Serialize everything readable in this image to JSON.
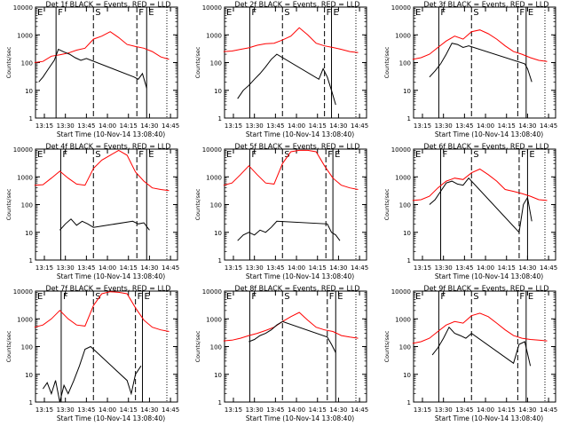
{
  "figure": {
    "x_tick_labels": [
      "13:15",
      "13:30",
      "13:45",
      "14:00",
      "14:15",
      "14:30",
      "14:45"
    ],
    "y_tick_labels": [
      "1",
      "10",
      "100",
      "1000",
      "10000"
    ],
    "ylabel": "Counts/sec",
    "xlabel": "Start Time (10-Nov-14 13:08:40)"
  },
  "chart_data": [
    {
      "type": "line",
      "title": "Det 1f BLACK = Events, RED = LLD",
      "y_scale": "log",
      "ylim": [
        1,
        10000
      ],
      "xlabel": "Start Time (10-Nov-14 13:08:40)",
      "ylabel": "Counts/sec",
      "markers": [
        {
          "label": "E",
          "x": "13:08:40"
        },
        {
          "label": "F",
          "x": "13:23:20"
        },
        {
          "label": "S",
          "x": "13:50:00"
        },
        {
          "label": "F",
          "x": "14:21:00"
        },
        {
          "label": "E",
          "x": "14:28:00"
        }
      ],
      "series": [
        {
          "color": "#ff0000",
          "x": [
            "13:08",
            "13:14",
            "13:20",
            "13:26",
            "13:32",
            "13:38",
            "13:44",
            "13:50",
            "13:56",
            "14:02",
            "14:08",
            "14:14",
            "14:20",
            "14:26",
            "14:32",
            "14:38",
            "14:44"
          ],
          "y": [
            100,
            110,
            170,
            190,
            220,
            280,
            330,
            700,
            900,
            1300,
            800,
            450,
            380,
            330,
            250,
            160,
            130
          ]
        },
        {
          "color": "#000000",
          "x": [
            "13:11",
            "13:14",
            "13:18",
            "13:22",
            "13:25",
            "13:29",
            "13:33",
            "13:37",
            "13:41",
            "13:45",
            "14:19",
            "14:22",
            "14:25",
            "14:28"
          ],
          "y": [
            20,
            30,
            60,
            120,
            300,
            240,
            200,
            150,
            120,
            140,
            30,
            25,
            40,
            12
          ]
        }
      ]
    },
    {
      "type": "line",
      "title": "Det 2f BLACK = Events, RED = LLD",
      "y_scale": "log",
      "ylim": [
        1,
        10000
      ],
      "xlabel": "Start Time (10-Nov-14 13:08:40)",
      "ylabel": "Counts/sec",
      "markers": [
        {
          "label": "E",
          "x": "13:08:40"
        },
        {
          "label": "F",
          "x": "13:26:40"
        },
        {
          "label": "S",
          "x": "13:50:00"
        },
        {
          "label": "F",
          "x": "14:20:00"
        },
        {
          "label": "E",
          "x": "14:25:00"
        }
      ],
      "series": [
        {
          "color": "#ff0000",
          "x": [
            "13:08",
            "13:14",
            "13:20",
            "13:26",
            "13:32",
            "13:38",
            "13:44",
            "13:50",
            "13:56",
            "14:02",
            "14:08",
            "14:14",
            "14:20",
            "14:26",
            "14:32",
            "14:38",
            "14:44"
          ],
          "y": [
            250,
            260,
            300,
            340,
            420,
            480,
            500,
            650,
            900,
            1800,
            1000,
            500,
            400,
            350,
            300,
            250,
            230
          ]
        },
        {
          "color": "#000000",
          "x": [
            "13:18",
            "13:22",
            "13:26",
            "13:30",
            "13:34",
            "13:38",
            "13:42",
            "13:46",
            "14:16",
            "14:19",
            "14:22",
            "14:25",
            "14:28"
          ],
          "y": [
            5,
            10,
            15,
            25,
            40,
            70,
            130,
            200,
            25,
            60,
            30,
            10,
            3
          ]
        }
      ]
    },
    {
      "type": "line",
      "title": "Det 3f BLACK = Events, RED = LLD",
      "y_scale": "log",
      "ylim": [
        1,
        10000
      ],
      "xlabel": "Start Time (10-Nov-14 13:08:40)",
      "ylabel": "Counts/sec",
      "markers": [
        {
          "label": "E",
          "x": "13:08:40"
        },
        {
          "label": "F",
          "x": "13:26:40"
        },
        {
          "label": "S",
          "x": "13:50:00"
        },
        {
          "label": "F",
          "x": "14:23:00"
        },
        {
          "label": "E",
          "x": "14:29:00"
        }
      ],
      "series": [
        {
          "color": "#ff0000",
          "x": [
            "13:08",
            "13:14",
            "13:20",
            "13:26",
            "13:32",
            "13:38",
            "13:44",
            "13:50",
            "13:56",
            "14:02",
            "14:08",
            "14:14",
            "14:20",
            "14:26",
            "14:32",
            "14:38",
            "14:44"
          ],
          "y": [
            130,
            150,
            200,
            350,
            600,
            900,
            700,
            1300,
            1500,
            1100,
            700,
            400,
            250,
            200,
            150,
            120,
            110
          ]
        },
        {
          "color": "#000000",
          "x": [
            "13:20",
            "13:24",
            "13:28",
            "13:32",
            "13:36",
            "13:40",
            "13:44",
            "13:48",
            "14:28",
            "14:30",
            "14:33"
          ],
          "y": [
            30,
            50,
            90,
            200,
            500,
            450,
            350,
            400,
            90,
            60,
            20
          ]
        }
      ]
    },
    {
      "type": "line",
      "title": "Det 4f BLACK = Events, RED = LLD",
      "y_scale": "log",
      "ylim": [
        1,
        10000
      ],
      "xlabel": "Start Time (10-Nov-14 13:08:40)",
      "ylabel": "Counts/sec",
      "markers": [
        {
          "label": "E",
          "x": "13:08:40"
        },
        {
          "label": "F",
          "x": "13:26:40"
        },
        {
          "label": "S",
          "x": "13:50:00"
        },
        {
          "label": "F",
          "x": "14:21:00"
        },
        {
          "label": "E",
          "x": "14:28:00"
        }
      ],
      "series": [
        {
          "color": "#ff0000",
          "x": [
            "13:08",
            "13:14",
            "13:20",
            "13:26",
            "13:32",
            "13:38",
            "13:44",
            "13:50",
            "13:56",
            "14:02",
            "14:08",
            "14:14",
            "14:20",
            "14:26",
            "14:32",
            "14:38",
            "14:44"
          ],
          "y": [
            500,
            520,
            900,
            1600,
            900,
            550,
            500,
            2000,
            4000,
            6000,
            9000,
            6000,
            1500,
            700,
            400,
            350,
            320
          ]
        },
        {
          "color": "#000000",
          "x": [
            "13:26",
            "13:30",
            "13:34",
            "13:38",
            "13:42",
            "13:46",
            "13:50",
            "14:18",
            "14:22",
            "14:26",
            "14:30"
          ],
          "y": [
            12,
            20,
            30,
            18,
            25,
            20,
            15,
            25,
            20,
            22,
            12
          ]
        }
      ]
    },
    {
      "type": "line",
      "title": "Det 5f BLACK = Events, RED = LLD",
      "y_scale": "log",
      "ylim": [
        1,
        10000
      ],
      "xlabel": "Start Time (10-Nov-14 13:08:40)",
      "ylabel": "Counts/sec",
      "markers": [
        {
          "label": "E",
          "x": "13:08:40"
        },
        {
          "label": "F",
          "x": "13:26:40"
        },
        {
          "label": "S",
          "x": "13:50:00"
        },
        {
          "label": "F",
          "x": "14:21:00"
        },
        {
          "label": "E",
          "x": "14:26:00"
        }
      ],
      "series": [
        {
          "color": "#ff0000",
          "x": [
            "13:08",
            "13:14",
            "13:20",
            "13:26",
            "13:32",
            "13:38",
            "13:44",
            "13:50",
            "13:56",
            "14:02",
            "14:08",
            "14:14",
            "14:20",
            "14:26",
            "14:32",
            "14:38",
            "14:44"
          ],
          "y": [
            500,
            600,
            1200,
            2500,
            1200,
            600,
            550,
            3000,
            8000,
            9000,
            9000,
            8000,
            2500,
            900,
            500,
            400,
            350
          ]
        },
        {
          "color": "#000000",
          "x": [
            "13:18",
            "13:22",
            "13:26",
            "13:30",
            "13:34",
            "13:38",
            "13:42",
            "13:46",
            "14:22",
            "14:25",
            "14:28",
            "14:31"
          ],
          "y": [
            5,
            8,
            10,
            8,
            12,
            10,
            15,
            25,
            20,
            10,
            8,
            5
          ]
        }
      ]
    },
    {
      "type": "line",
      "title": "Det 6f BLACK = Events, RED = LLD",
      "y_scale": "log",
      "ylim": [
        1,
        10000
      ],
      "xlabel": "Start Time (10-Nov-14 13:08:40)",
      "ylabel": "Counts/sec",
      "markers": [
        {
          "label": "E",
          "x": "13:08:40"
        },
        {
          "label": "F",
          "x": "13:28:00"
        },
        {
          "label": "S",
          "x": "13:50:00"
        },
        {
          "label": "F",
          "x": "14:24:00"
        },
        {
          "label": "E",
          "x": "14:30:00"
        }
      ],
      "series": [
        {
          "color": "#ff0000",
          "x": [
            "13:08",
            "13:14",
            "13:20",
            "13:26",
            "13:32",
            "13:38",
            "13:44",
            "13:50",
            "13:56",
            "14:02",
            "14:08",
            "14:14",
            "14:20",
            "14:26",
            "14:32",
            "14:38",
            "14:44"
          ],
          "y": [
            140,
            150,
            200,
            400,
            700,
            900,
            800,
            1400,
            1900,
            1200,
            700,
            350,
            300,
            250,
            200,
            150,
            140
          ]
        },
        {
          "color": "#000000",
          "x": [
            "13:20",
            "13:24",
            "13:28",
            "13:32",
            "13:36",
            "13:40",
            "13:44",
            "13:48",
            "14:24",
            "14:27",
            "14:30",
            "14:33"
          ],
          "y": [
            100,
            150,
            300,
            600,
            700,
            550,
            500,
            900,
            10,
            100,
            180,
            25
          ]
        }
      ]
    },
    {
      "type": "line",
      "title": "Det 7f BLACK = Events, RED = LLD",
      "y_scale": "log",
      "ylim": [
        1,
        10000
      ],
      "xlabel": "Start Time (10-Nov-14 13:08:40)",
      "ylabel": "Counts/sec",
      "markers": [
        {
          "label": "E",
          "x": "13:08:40"
        },
        {
          "label": "F",
          "x": "13:27:00"
        },
        {
          "label": "S",
          "x": "13:50:00"
        },
        {
          "label": "F",
          "x": "14:20:00"
        },
        {
          "label": "E",
          "x": "14:25:00"
        }
      ],
      "series": [
        {
          "color": "#ff0000",
          "x": [
            "13:08",
            "13:14",
            "13:20",
            "13:26",
            "13:32",
            "13:38",
            "13:44",
            "13:50",
            "13:56",
            "14:02",
            "14:08",
            "14:14",
            "14:20",
            "14:26",
            "14:32",
            "14:38",
            "14:44"
          ],
          "y": [
            500,
            600,
            1000,
            2000,
            1000,
            600,
            550,
            3000,
            8000,
            9500,
            9000,
            8000,
            2500,
            900,
            500,
            400,
            350
          ]
        },
        {
          "color": "#000000",
          "x": [
            "13:14",
            "13:17",
            "13:20",
            "13:23",
            "13:26",
            "13:29",
            "13:32",
            "13:36",
            "13:40",
            "13:44",
            "13:48",
            "14:14",
            "14:17",
            "14:20",
            "14:24"
          ],
          "y": [
            3,
            5,
            2,
            6,
            1,
            4,
            2,
            6,
            20,
            80,
            100,
            6,
            2,
            10,
            20
          ]
        }
      ]
    },
    {
      "type": "line",
      "title": "Det 8f BLACK = Events, RED = LLD",
      "y_scale": "log",
      "ylim": [
        1,
        10000
      ],
      "xlabel": "Start Time (10-Nov-14 13:08:40)",
      "ylabel": "Counts/sec",
      "markers": [
        {
          "label": "E",
          "x": "13:08:40"
        },
        {
          "label": "F",
          "x": "13:26:40"
        },
        {
          "label": "S",
          "x": "13:50:00"
        },
        {
          "label": "F",
          "x": "14:22:00"
        },
        {
          "label": "E",
          "x": "14:28:00"
        }
      ],
      "series": [
        {
          "color": "#ff0000",
          "x": [
            "13:08",
            "13:14",
            "13:20",
            "13:26",
            "13:32",
            "13:38",
            "13:44",
            "13:50",
            "13:56",
            "14:02",
            "14:08",
            "14:14",
            "14:20",
            "14:26",
            "14:32",
            "14:38",
            "14:44"
          ],
          "y": [
            160,
            170,
            200,
            250,
            300,
            380,
            500,
            800,
            1200,
            1700,
            900,
            500,
            400,
            350,
            250,
            220,
            200
          ]
        },
        {
          "color": "#000000",
          "x": [
            "13:26",
            "13:30",
            "13:34",
            "13:38",
            "13:42",
            "13:46",
            "13:50",
            "14:22",
            "14:25",
            "14:28"
          ],
          "y": [
            150,
            180,
            250,
            300,
            400,
            600,
            800,
            220,
            120,
            60
          ]
        }
      ]
    },
    {
      "type": "line",
      "title": "Det 9f BLACK = Events, RED = LLD",
      "y_scale": "log",
      "ylim": [
        1,
        10000
      ],
      "xlabel": "Start Time (10-Nov-14 13:08:40)",
      "ylabel": "Counts/sec",
      "markers": [
        {
          "label": "E",
          "x": "13:08:40"
        },
        {
          "label": "F",
          "x": "13:26:40"
        },
        {
          "label": "S",
          "x": "13:50:00"
        },
        {
          "label": "F",
          "x": "14:23:00"
        },
        {
          "label": "E",
          "x": "14:29:00"
        }
      ],
      "series": [
        {
          "color": "#ff0000",
          "x": [
            "13:08",
            "13:14",
            "13:20",
            "13:26",
            "13:32",
            "13:38",
            "13:44",
            "13:50",
            "13:56",
            "14:02",
            "14:08",
            "14:14",
            "14:20",
            "14:26",
            "14:32",
            "14:38",
            "14:44"
          ],
          "y": [
            130,
            150,
            200,
            350,
            600,
            800,
            700,
            1300,
            1600,
            1200,
            700,
            400,
            250,
            200,
            180,
            170,
            160
          ]
        },
        {
          "color": "#000000",
          "x": [
            "13:22",
            "13:26",
            "13:30",
            "13:34",
            "13:38",
            "13:42",
            "13:46",
            "13:50",
            "14:20",
            "14:24",
            "14:28",
            "14:32"
          ],
          "y": [
            50,
            90,
            200,
            500,
            300,
            250,
            200,
            300,
            25,
            120,
            150,
            20
          ]
        }
      ]
    }
  ]
}
